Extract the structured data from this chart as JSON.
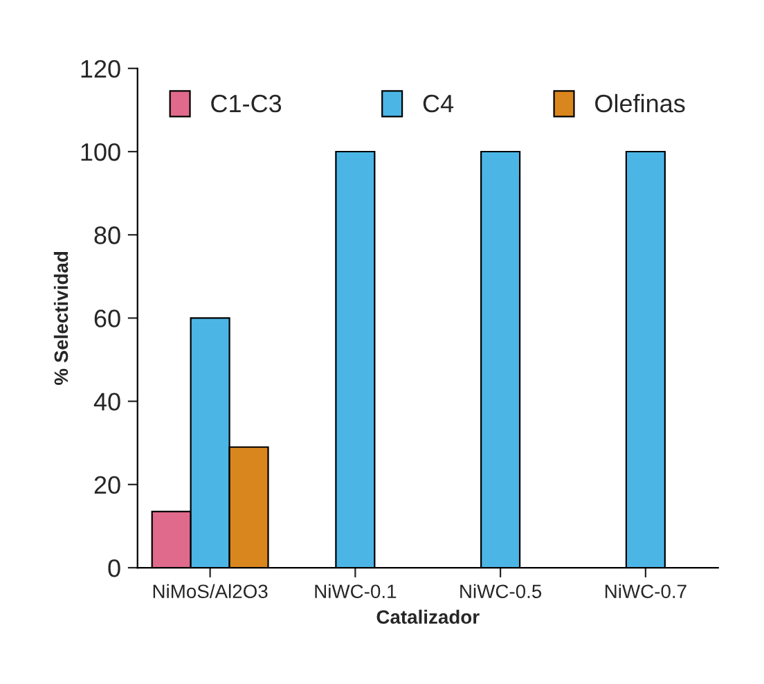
{
  "chart_data": {
    "type": "bar",
    "xlabel": "Catalizador",
    "ylabel": "% Selectividad",
    "categories": [
      "NiMoS/Al2O3",
      "NiWC-0.1",
      "NiWC-0.5",
      "NiWC-0.7"
    ],
    "series": [
      {
        "name": "C1-C3",
        "color": "#e06a8c",
        "values": [
          13.5,
          null,
          null,
          null
        ]
      },
      {
        "name": "C4",
        "color": "#4bb6e6",
        "values": [
          60,
          100,
          100,
          100
        ]
      },
      {
        "name": "Olefinas",
        "color": "#d9861e",
        "values": [
          29,
          null,
          null,
          null
        ]
      }
    ],
    "ylim": [
      0,
      120
    ],
    "yticks": [
      0,
      20,
      40,
      60,
      80,
      100,
      120
    ],
    "grid": false,
    "legend": "top"
  }
}
